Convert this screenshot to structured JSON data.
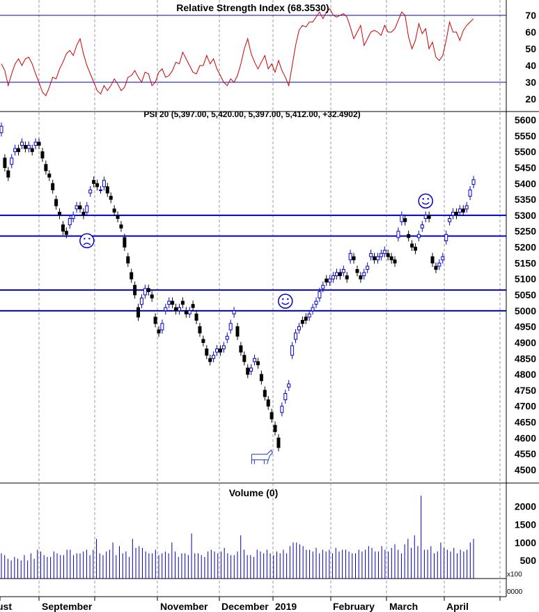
{
  "chart_data": [
    {
      "type": "line",
      "title": "Relative Strength Index (68.3530)",
      "yticks": [
        20,
        30,
        40,
        50,
        60,
        70
      ],
      "ylim": [
        16,
        75
      ],
      "reference_lines": [
        30,
        70
      ],
      "series": [
        {
          "color": "#cc0000",
          "values": [
            41,
            37,
            28,
            35,
            41,
            44,
            40,
            44,
            45,
            41,
            35,
            30,
            24,
            22,
            27,
            33,
            32,
            38,
            42,
            47,
            49,
            46,
            52,
            56,
            47,
            40,
            35,
            30,
            25,
            23,
            28,
            25,
            28,
            32,
            29,
            25,
            27,
            33,
            34,
            37,
            33,
            30,
            36,
            35,
            28,
            30,
            36,
            38,
            33,
            34,
            37,
            42,
            41,
            48,
            44,
            40,
            36,
            35,
            40,
            40,
            46,
            41,
            44,
            38,
            34,
            30,
            28,
            32,
            30,
            34,
            41,
            50,
            56,
            47,
            42,
            38,
            42,
            46,
            38,
            41,
            36,
            43,
            37,
            33,
            28,
            40,
            52,
            61,
            64,
            63,
            66,
            66,
            69,
            72,
            68,
            72,
            74,
            70,
            69,
            70,
            71,
            69,
            63,
            56,
            60,
            64,
            52,
            56,
            60,
            61,
            60,
            58,
            64,
            60,
            60,
            62,
            67,
            72,
            70,
            57,
            50,
            55,
            65,
            59,
            62,
            50,
            54,
            45,
            43,
            46,
            55,
            66,
            60,
            60,
            55,
            61,
            64,
            66,
            68
          ]
        }
      ]
    },
    {
      "type": "candlestick",
      "title": "PSI 20 (5,397.00, 5,420.00, 5,397.00, 5,412.00, +32.4902)",
      "ylim": [
        4480,
        5620
      ],
      "yticks": [
        4500,
        4550,
        4600,
        4650,
        4700,
        4750,
        4800,
        4850,
        4900,
        4950,
        5000,
        5050,
        5100,
        5150,
        5200,
        5250,
        5300,
        5350,
        5400,
        5450,
        5500,
        5550,
        5600
      ],
      "horizontal_lines": [
        5000,
        5065,
        5235,
        5300
      ],
      "annotations": [
        {
          "label": "frown-face",
          "at_day": 25,
          "price": 5220
        },
        {
          "label": "smile-face",
          "at_day": 83,
          "price": 5030
        },
        {
          "label": "smile-face",
          "at_day": 124,
          "price": 5345
        },
        {
          "label": "bull",
          "at_day": 76,
          "price": 4540
        }
      ],
      "close": [
        5580,
        5450,
        5420,
        5480,
        5510,
        5500,
        5530,
        5510,
        5520,
        5500,
        5530,
        5520,
        5480,
        5440,
        5420,
        5380,
        5330,
        5300,
        5250,
        5240,
        5290,
        5300,
        5330,
        5320,
        5300,
        5330,
        5380,
        5400,
        5390,
        5380,
        5410,
        5370,
        5350,
        5310,
        5290,
        5260,
        5200,
        5150,
        5100,
        5050,
        4980,
        5040,
        5070,
        5060,
        5040,
        4960,
        4930,
        4960,
        5010,
        5030,
        5020,
        5000,
        5010,
        5020,
        4990,
        5000,
        5010,
        4970,
        4930,
        4900,
        4860,
        4840,
        4860,
        4880,
        4870,
        4890,
        4920,
        4960,
        5000,
        4920,
        4870,
        4840,
        4800,
        4820,
        4850,
        4830,
        4780,
        4730,
        4700,
        4660,
        4620,
        4570,
        4700,
        4740,
        4770,
        4890,
        4930,
        4950,
        4960,
        4970,
        4990,
        5010,
        5030,
        5060,
        5080,
        5090,
        5100,
        5110,
        5120,
        5110,
        5130,
        5100,
        5180,
        5160,
        5120,
        5100,
        5120,
        5140,
        5180,
        5160,
        5170,
        5180,
        5190,
        5170,
        5160,
        5150,
        5250,
        5300,
        5280,
        5230,
        5200,
        5190,
        5240,
        5270,
        5300,
        5290,
        5150,
        5130,
        5150,
        5170,
        5240,
        5290,
        5310,
        5300,
        5320,
        5310,
        5330,
        5380,
        5412
      ],
      "open": [
        5560,
        5480,
        5440,
        5460,
        5500,
        5510,
        5520,
        5520,
        5510,
        5510,
        5520,
        5530,
        5500,
        5460,
        5430,
        5400,
        5350,
        5310,
        5270,
        5250,
        5270,
        5290,
        5320,
        5330,
        5310,
        5310,
        5370,
        5410,
        5400,
        5380,
        5390,
        5390,
        5360,
        5320,
        5300,
        5270,
        5230,
        5170,
        5120,
        5080,
        5010,
        5020,
        5050,
        5070,
        5050,
        4980,
        4940,
        4940,
        5000,
        5020,
        5030,
        5010,
        5000,
        5030,
        5000,
        4990,
        5020,
        4990,
        4950,
        4910,
        4880,
        4850,
        4850,
        4870,
        4880,
        4880,
        4910,
        4940,
        4990,
        4950,
        4890,
        4860,
        4820,
        4810,
        4840,
        4840,
        4800,
        4750,
        4720,
        4680,
        4640,
        4600,
        4680,
        4720,
        4760,
        4860,
        4910,
        4940,
        4970,
        4980,
        4980,
        5000,
        5020,
        5040,
        5070,
        5100,
        5090,
        5100,
        5110,
        5120,
        5120,
        5110,
        5160,
        5170,
        5130,
        5110,
        5110,
        5130,
        5170,
        5170,
        5160,
        5170,
        5180,
        5180,
        5170,
        5160,
        5230,
        5280,
        5290,
        5240,
        5210,
        5200,
        5230,
        5260,
        5290,
        5300,
        5170,
        5140,
        5140,
        5160,
        5220,
        5280,
        5300,
        5310,
        5310,
        5320,
        5320,
        5360,
        5397
      ]
    },
    {
      "type": "bar",
      "title": "Volume (0)",
      "unit_label": "x100",
      "yticks": [
        500,
        1000,
        1500,
        2000
      ],
      "ylim": [
        0,
        2500
      ],
      "values": [
        700,
        650,
        550,
        500,
        600,
        550,
        500,
        650,
        500,
        700,
        550,
        800,
        750,
        650,
        600,
        600,
        750,
        700,
        650,
        650,
        800,
        800,
        650,
        700,
        700,
        750,
        800,
        650,
        800,
        1100,
        700,
        650,
        750,
        800,
        1000,
        650,
        900,
        700,
        750,
        600,
        1100,
        850,
        900,
        850,
        750,
        700,
        700,
        800,
        650,
        700,
        750,
        700,
        1000,
        750,
        600,
        700,
        700,
        650,
        1250,
        700,
        700,
        650,
        600,
        750,
        800,
        750,
        700,
        750,
        850,
        700,
        650,
        650,
        750,
        1200,
        800,
        650,
        650,
        600,
        800,
        750,
        700,
        800,
        700,
        650,
        750,
        700,
        800,
        700,
        900,
        1000,
        1000,
        950,
        900,
        800,
        800,
        750,
        850,
        700,
        800,
        750,
        800,
        700,
        850,
        750,
        800,
        800,
        750,
        700,
        700,
        800,
        750,
        800,
        900,
        850,
        750,
        750,
        900,
        800,
        750,
        850,
        950,
        800,
        700,
        950,
        1100,
        850,
        1200,
        900,
        2300,
        800,
        800,
        900,
        700,
        750,
        1000,
        850,
        800,
        750,
        850,
        700,
        800,
        750,
        800,
        1000,
        1100
      ]
    },
    {
      "type": "axis",
      "x_tick_labels": [
        "ust",
        "September",
        "November",
        "December",
        "2019",
        "February",
        "March",
        "April"
      ],
      "y_tick_label_overflow": "0000"
    }
  ]
}
